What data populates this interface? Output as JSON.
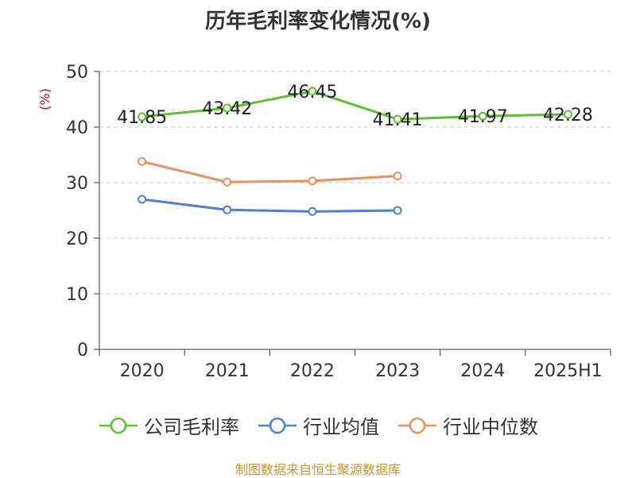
{
  "chart_data": {
    "type": "line",
    "title": "历年毛利率变化情况(%)",
    "ylabel": "(%)",
    "xlabel": "",
    "categories": [
      "2020",
      "2021",
      "2022",
      "2023",
      "2024",
      "2025H1"
    ],
    "ylim": [
      0,
      50
    ],
    "yticks": [
      0,
      10,
      20,
      30,
      40,
      50
    ],
    "grid": true,
    "legend_position": "bottom",
    "series": [
      {
        "name": "公司毛利率",
        "color": "#5cc12e",
        "values": [
          41.85,
          43.42,
          46.45,
          41.41,
          41.97,
          42.28
        ],
        "labels": [
          "41.85",
          "43.42",
          "46.45",
          "41.41",
          "41.97",
          "42.28"
        ]
      },
      {
        "name": "行业均值",
        "color": "#4a7fdb",
        "values": [
          27.0,
          25.1,
          24.8,
          25.0,
          null,
          null
        ]
      },
      {
        "name": "行业中位数",
        "color": "#f28d5a",
        "values": [
          33.8,
          30.1,
          30.3,
          31.2,
          null,
          null
        ]
      }
    ]
  },
  "source_note": "制图数据来自恒生聚源数据库"
}
